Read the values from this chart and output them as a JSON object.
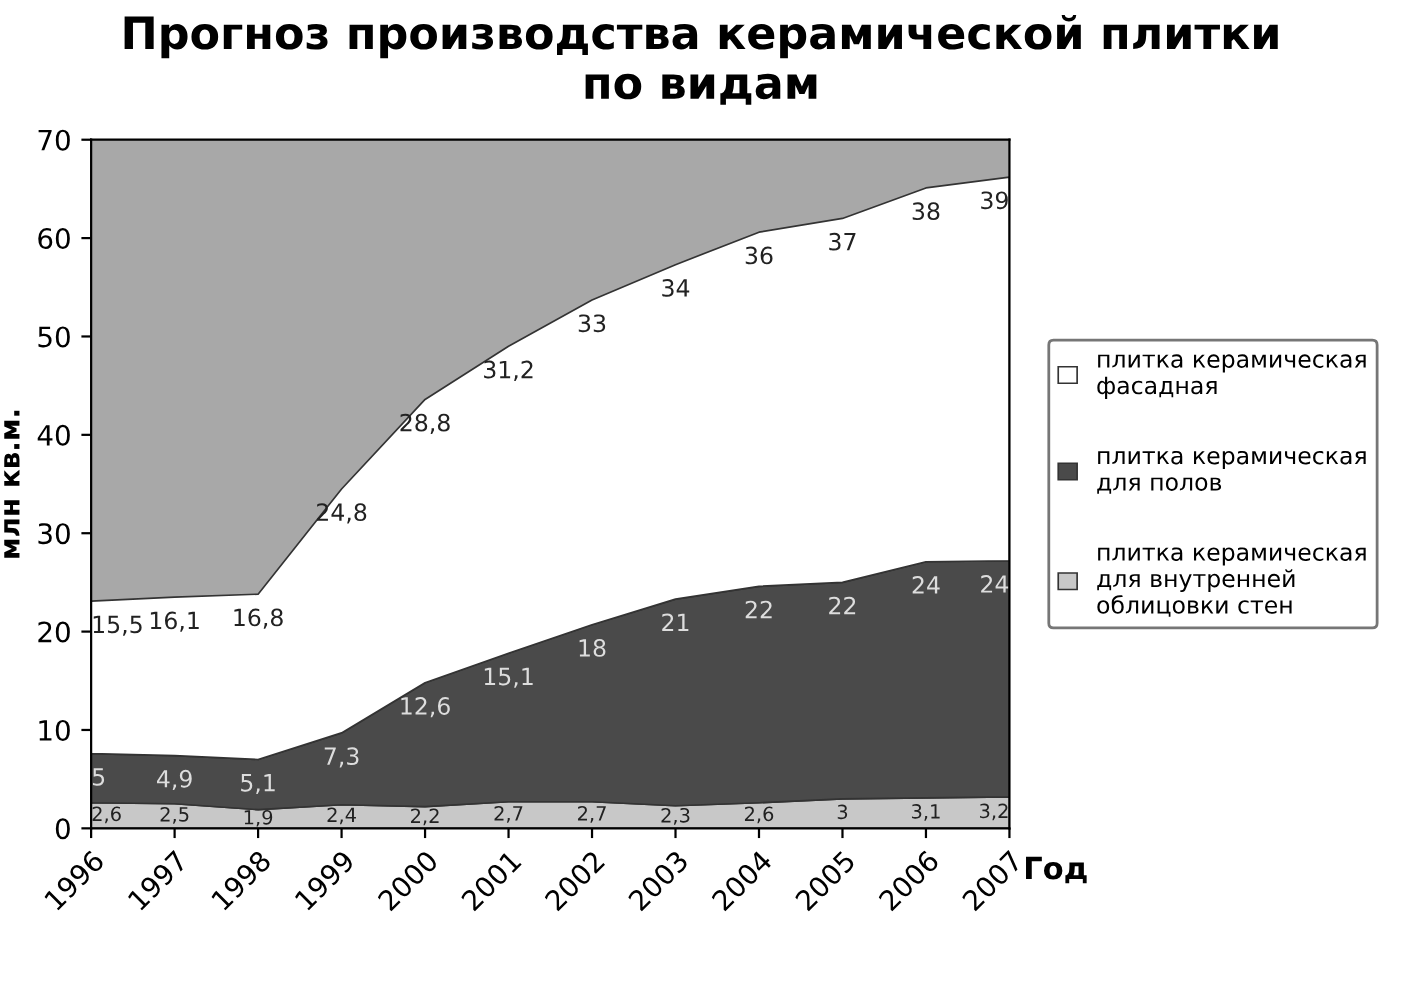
{
  "chart_data": {
    "type": "area",
    "stacked": true,
    "title": "Прогноз производства керамической плитки\nпо видам",
    "xlabel": "Год",
    "ylabel": "млн кв.м.",
    "categories": [
      "1996",
      "1997",
      "1998",
      "1999",
      "2000",
      "2001",
      "2002",
      "2003",
      "2004",
      "2005",
      "2006",
      "2007"
    ],
    "series": [
      {
        "name": "плитка керамическая для внутренней облицовки стен",
        "color": "#c8c8c8",
        "values": [
          2.6,
          2.5,
          1.9,
          2.4,
          2.2,
          2.7,
          2.7,
          2.3,
          2.6,
          3,
          3.1,
          3.2
        ],
        "value_labels": [
          "2,6",
          "2,5",
          "1,9",
          "2,4",
          "2,2",
          "2,7",
          "2,7",
          "2,3",
          "2,6",
          "3",
          "3,1",
          "3,2"
        ]
      },
      {
        "name": "плитка керамическая для полов",
        "color": "#4a4a4a",
        "values": [
          5,
          4.9,
          5.1,
          7.3,
          12.6,
          15.1,
          18,
          21,
          22,
          22,
          24,
          24
        ],
        "value_labels": [
          "5",
          "4,9",
          "5,1",
          "7,3",
          "12,6",
          "15,1",
          "18",
          "21",
          "22",
          "22",
          "24",
          "24"
        ]
      },
      {
        "name": "плитка керамическая фасадная",
        "color": "#ffffff",
        "values": [
          15.5,
          16.1,
          16.8,
          24.8,
          28.8,
          31.2,
          33,
          34,
          36,
          37,
          38,
          39
        ],
        "value_labels": [
          "15,5",
          "16,1",
          "16,8",
          "24,8",
          "28,8",
          "31,2",
          "33",
          "34",
          "36",
          "37",
          "38",
          "39"
        ]
      }
    ],
    "ylim": [
      0,
      70
    ],
    "yticks": [
      0,
      10,
      20,
      30,
      40,
      50,
      60,
      70
    ],
    "grid": false,
    "legend": "right"
  }
}
